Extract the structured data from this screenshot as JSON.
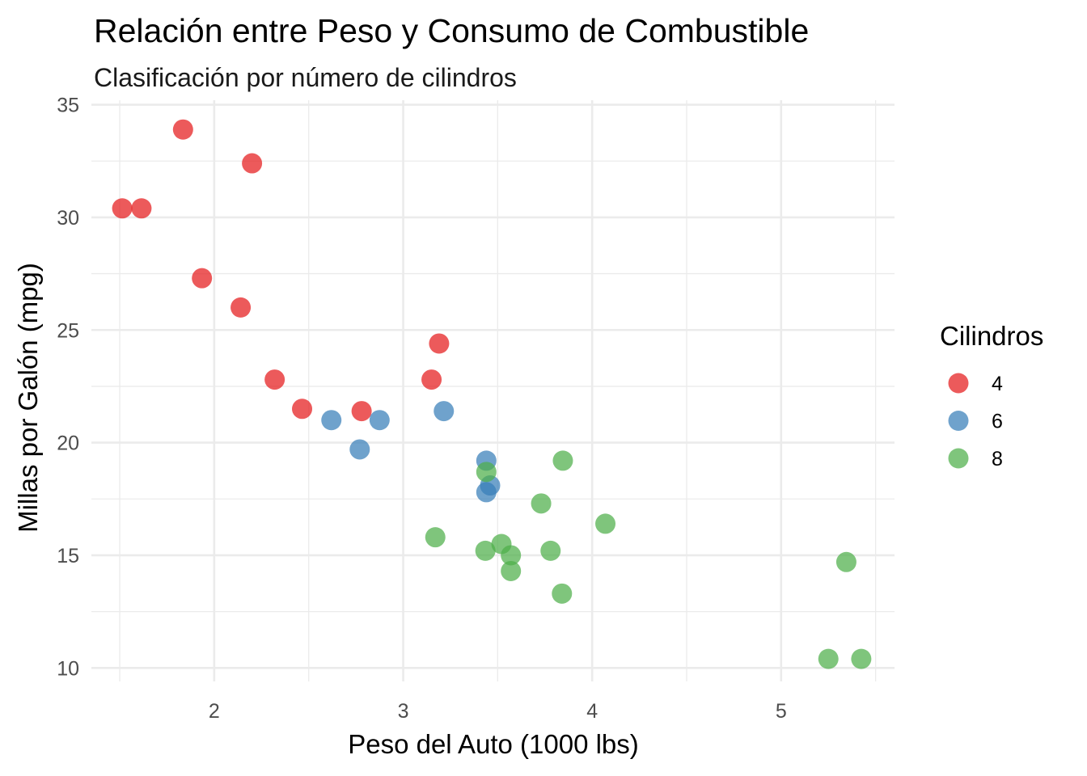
{
  "chart_data": {
    "type": "scatter",
    "title": "Relación entre Peso y Consumo de Combustible",
    "subtitle": "Clasificación por número de cilindros",
    "xlabel": "Peso del Auto (1000 lbs)",
    "ylabel": "Millas por Galón (mpg)",
    "xlim": [
      1.35,
      5.6
    ],
    "ylim": [
      9.4,
      35.2
    ],
    "x_ticks": [
      2,
      3,
      4,
      5
    ],
    "y_ticks": [
      10,
      15,
      20,
      25,
      30,
      35
    ],
    "grid": true,
    "legend": {
      "title": "Cilindros",
      "position": "right"
    },
    "series": [
      {
        "name": "4",
        "color": "#e41a1c",
        "points": [
          {
            "x": 1.835,
            "y": 33.9
          },
          {
            "x": 2.2,
            "y": 32.4
          },
          {
            "x": 1.513,
            "y": 30.4
          },
          {
            "x": 1.615,
            "y": 30.4
          },
          {
            "x": 1.935,
            "y": 27.3
          },
          {
            "x": 2.14,
            "y": 26.0
          },
          {
            "x": 3.19,
            "y": 24.4
          },
          {
            "x": 2.32,
            "y": 22.8
          },
          {
            "x": 3.15,
            "y": 22.8
          },
          {
            "x": 2.465,
            "y": 21.5
          },
          {
            "x": 2.78,
            "y": 21.4
          }
        ]
      },
      {
        "name": "6",
        "color": "#377eb8",
        "points": [
          {
            "x": 2.62,
            "y": 21.0
          },
          {
            "x": 2.875,
            "y": 21.0
          },
          {
            "x": 3.215,
            "y": 21.4
          },
          {
            "x": 3.44,
            "y": 19.2
          },
          {
            "x": 3.46,
            "y": 18.1
          },
          {
            "x": 3.44,
            "y": 17.8
          },
          {
            "x": 2.77,
            "y": 19.7
          }
        ]
      },
      {
        "name": "8",
        "color": "#4daf4a",
        "points": [
          {
            "x": 3.44,
            "y": 18.7
          },
          {
            "x": 3.845,
            "y": 19.2
          },
          {
            "x": 3.73,
            "y": 17.3
          },
          {
            "x": 4.07,
            "y": 16.4
          },
          {
            "x": 3.17,
            "y": 15.8
          },
          {
            "x": 3.435,
            "y": 15.2
          },
          {
            "x": 3.78,
            "y": 15.2
          },
          {
            "x": 3.52,
            "y": 15.5
          },
          {
            "x": 3.57,
            "y": 15.0
          },
          {
            "x": 3.57,
            "y": 14.3
          },
          {
            "x": 3.84,
            "y": 13.3
          },
          {
            "x": 5.345,
            "y": 14.7
          },
          {
            "x": 5.25,
            "y": 10.4
          },
          {
            "x": 5.424,
            "y": 10.4
          }
        ]
      }
    ]
  }
}
